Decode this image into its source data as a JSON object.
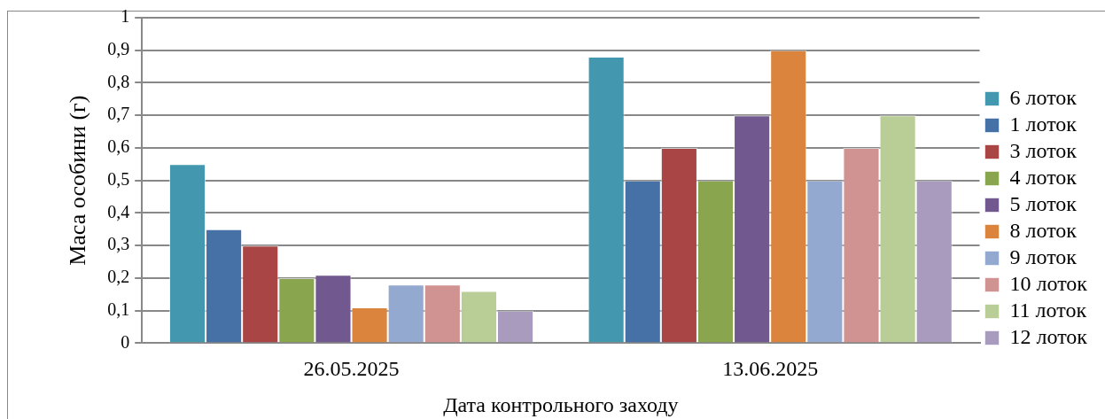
{
  "chart_data": {
    "type": "bar",
    "xlabel": "Дата контрольного заходу",
    "ylabel": "Маса особини (г)",
    "categories": [
      "26.05.2025",
      "13.06.2025"
    ],
    "series": [
      {
        "name": "6 лоток",
        "color": "#4398b0",
        "values": [
          0.55,
          0.88
        ]
      },
      {
        "name": "1 лоток",
        "color": "#4571a6",
        "values": [
          0.35,
          0.5
        ]
      },
      {
        "name": "3 лоток",
        "color": "#a94645",
        "values": [
          0.3,
          0.6
        ]
      },
      {
        "name": "4 лоток",
        "color": "#89a54e",
        "values": [
          0.2,
          0.5
        ]
      },
      {
        "name": "5 лоток",
        "color": "#71588f",
        "values": [
          0.21,
          0.7
        ]
      },
      {
        "name": "8 лоток",
        "color": "#db843d",
        "values": [
          0.11,
          0.9
        ]
      },
      {
        "name": "9 лоток",
        "color": "#93a9cf",
        "values": [
          0.18,
          0.5
        ]
      },
      {
        "name": "10 лоток",
        "color": "#d19392",
        "values": [
          0.18,
          0.6
        ]
      },
      {
        "name": "11 лоток",
        "color": "#b9cd96",
        "values": [
          0.16,
          0.7
        ]
      },
      {
        "name": "12 лоток",
        "color": "#a99bbd",
        "values": [
          0.1,
          0.5
        ]
      }
    ],
    "ylim": [
      0,
      1
    ],
    "yticks": [
      0,
      {
        "value": 0.1,
        "label": "0,1"
      },
      {
        "value": 0.2,
        "label": "0,2"
      },
      {
        "value": 0.3,
        "label": "0,3"
      },
      {
        "value": 0.4,
        "label": "0,4"
      },
      {
        "value": 0.5,
        "label": "0,5"
      },
      {
        "value": 0.6,
        "label": "0,6"
      },
      {
        "value": 0.7,
        "label": "0,7"
      },
      {
        "value": 0.8,
        "label": "0,8"
      },
      {
        "value": 0.9,
        "label": "0,9"
      },
      1
    ],
    "grid": "y",
    "legend": "right"
  }
}
